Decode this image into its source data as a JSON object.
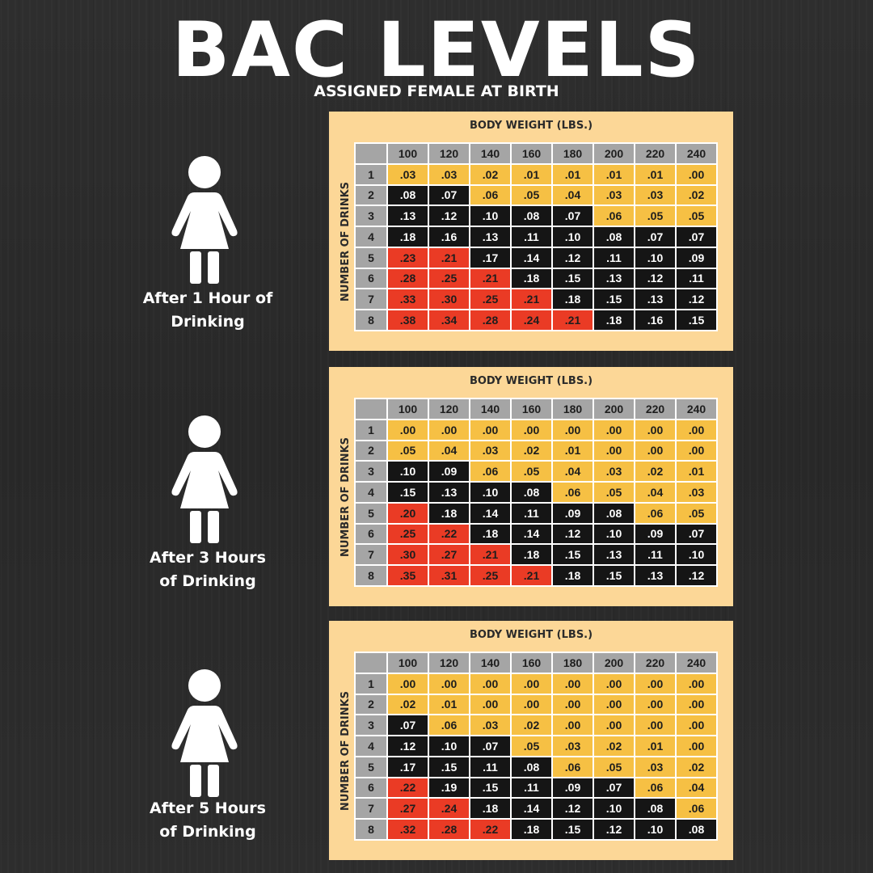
{
  "title": "BAC LEVELS",
  "subtitle": "ASSIGNED FEMALE AT BIRTH",
  "colors": {
    "background": "#2b2b2b",
    "panel": "#fcd797",
    "header_gray": "#a5a5a5",
    "yellow": "#f6c044",
    "black": "#151515",
    "red": "#ea3b25"
  },
  "icon": "female-person-icon",
  "tables": [
    {
      "caption_line1": "After 1 Hour of",
      "caption_line2": "Drinking",
      "column_header": "BODY WEIGHT (LBS.)",
      "row_header": "NUMBER OF DRINKS",
      "weights": [
        "100",
        "120",
        "140",
        "160",
        "180",
        "200",
        "220",
        "240"
      ],
      "rows": [
        {
          "drinks": "1",
          "values": [
            ".03",
            ".03",
            ".02",
            ".01",
            ".01",
            ".01",
            ".01",
            ".00"
          ],
          "levels": [
            "y",
            "y",
            "y",
            "y",
            "y",
            "y",
            "y",
            "y"
          ]
        },
        {
          "drinks": "2",
          "values": [
            ".08",
            ".07",
            ".06",
            ".05",
            ".04",
            ".03",
            ".03",
            ".02"
          ],
          "levels": [
            "k",
            "k",
            "y",
            "y",
            "y",
            "y",
            "y",
            "y"
          ]
        },
        {
          "drinks": "3",
          "values": [
            ".13",
            ".12",
            ".10",
            ".08",
            ".07",
            ".06",
            ".05",
            ".05"
          ],
          "levels": [
            "k",
            "k",
            "k",
            "k",
            "k",
            "y",
            "y",
            "y"
          ]
        },
        {
          "drinks": "4",
          "values": [
            ".18",
            ".16",
            ".13",
            ".11",
            ".10",
            ".08",
            ".07",
            ".07"
          ],
          "levels": [
            "k",
            "k",
            "k",
            "k",
            "k",
            "k",
            "k",
            "k"
          ]
        },
        {
          "drinks": "5",
          "values": [
            ".23",
            ".21",
            ".17",
            ".14",
            ".12",
            ".11",
            ".10",
            ".09"
          ],
          "levels": [
            "r",
            "r",
            "k",
            "k",
            "k",
            "k",
            "k",
            "k"
          ]
        },
        {
          "drinks": "6",
          "values": [
            ".28",
            ".25",
            ".21",
            ".18",
            ".15",
            ".13",
            ".12",
            ".11"
          ],
          "levels": [
            "r",
            "r",
            "r",
            "k",
            "k",
            "k",
            "k",
            "k"
          ]
        },
        {
          "drinks": "7",
          "values": [
            ".33",
            ".30",
            ".25",
            ".21",
            ".18",
            ".15",
            ".13",
            ".12"
          ],
          "levels": [
            "r",
            "r",
            "r",
            "r",
            "k",
            "k",
            "k",
            "k"
          ]
        },
        {
          "drinks": "8",
          "values": [
            ".38",
            ".34",
            ".28",
            ".24",
            ".21",
            ".18",
            ".16",
            ".15"
          ],
          "levels": [
            "r",
            "r",
            "r",
            "r",
            "r",
            "k",
            "k",
            "k"
          ]
        }
      ]
    },
    {
      "caption_line1": "After 3 Hours",
      "caption_line2": "of Drinking",
      "column_header": "BODY WEIGHT (LBS.)",
      "row_header": "NUMBER OF DRINKS",
      "weights": [
        "100",
        "120",
        "140",
        "160",
        "180",
        "200",
        "220",
        "240"
      ],
      "rows": [
        {
          "drinks": "1",
          "values": [
            ".00",
            ".00",
            ".00",
            ".00",
            ".00",
            ".00",
            ".00",
            ".00"
          ],
          "levels": [
            "y",
            "y",
            "y",
            "y",
            "y",
            "y",
            "y",
            "y"
          ]
        },
        {
          "drinks": "2",
          "values": [
            ".05",
            ".04",
            ".03",
            ".02",
            ".01",
            ".00",
            ".00",
            ".00"
          ],
          "levels": [
            "y",
            "y",
            "y",
            "y",
            "y",
            "y",
            "y",
            "y"
          ]
        },
        {
          "drinks": "3",
          "values": [
            ".10",
            ".09",
            ".06",
            ".05",
            ".04",
            ".03",
            ".02",
            ".01"
          ],
          "levels": [
            "k",
            "k",
            "y",
            "y",
            "y",
            "y",
            "y",
            "y"
          ]
        },
        {
          "drinks": "4",
          "values": [
            ".15",
            ".13",
            ".10",
            ".08",
            ".06",
            ".05",
            ".04",
            ".03"
          ],
          "levels": [
            "k",
            "k",
            "k",
            "k",
            "y",
            "y",
            "y",
            "y"
          ]
        },
        {
          "drinks": "5",
          "values": [
            ".20",
            ".18",
            ".14",
            ".11",
            ".09",
            ".08",
            ".06",
            ".05"
          ],
          "levels": [
            "r",
            "k",
            "k",
            "k",
            "k",
            "k",
            "y",
            "y"
          ]
        },
        {
          "drinks": "6",
          "values": [
            ".25",
            ".22",
            ".18",
            ".14",
            ".12",
            ".10",
            ".09",
            ".07"
          ],
          "levels": [
            "r",
            "r",
            "k",
            "k",
            "k",
            "k",
            "k",
            "k"
          ]
        },
        {
          "drinks": "7",
          "values": [
            ".30",
            ".27",
            ".21",
            ".18",
            ".15",
            ".13",
            ".11",
            ".10"
          ],
          "levels": [
            "r",
            "r",
            "r",
            "k",
            "k",
            "k",
            "k",
            "k"
          ]
        },
        {
          "drinks": "8",
          "values": [
            ".35",
            ".31",
            ".25",
            ".21",
            ".18",
            ".15",
            ".13",
            ".12"
          ],
          "levels": [
            "r",
            "r",
            "r",
            "r",
            "k",
            "k",
            "k",
            "k"
          ]
        }
      ]
    },
    {
      "caption_line1": "After 5 Hours",
      "caption_line2": "of Drinking",
      "column_header": "BODY WEIGHT (LBS.)",
      "row_header": "NUMBER OF DRINKS",
      "weights": [
        "100",
        "120",
        "140",
        "160",
        "180",
        "200",
        "220",
        "240"
      ],
      "rows": [
        {
          "drinks": "1",
          "values": [
            ".00",
            ".00",
            ".00",
            ".00",
            ".00",
            ".00",
            ".00",
            ".00"
          ],
          "levels": [
            "y",
            "y",
            "y",
            "y",
            "y",
            "y",
            "y",
            "y"
          ]
        },
        {
          "drinks": "2",
          "values": [
            ".02",
            ".01",
            ".00",
            ".00",
            ".00",
            ".00",
            ".00",
            ".00"
          ],
          "levels": [
            "y",
            "y",
            "y",
            "y",
            "y",
            "y",
            "y",
            "y"
          ]
        },
        {
          "drinks": "3",
          "values": [
            ".07",
            ".06",
            ".03",
            ".02",
            ".00",
            ".00",
            ".00",
            ".00"
          ],
          "levels": [
            "k",
            "y",
            "y",
            "y",
            "y",
            "y",
            "y",
            "y"
          ]
        },
        {
          "drinks": "4",
          "values": [
            ".12",
            ".10",
            ".07",
            ".05",
            ".03",
            ".02",
            ".01",
            ".00"
          ],
          "levels": [
            "k",
            "k",
            "k",
            "y",
            "y",
            "y",
            "y",
            "y"
          ]
        },
        {
          "drinks": "5",
          "values": [
            ".17",
            ".15",
            ".11",
            ".08",
            ".06",
            ".05",
            ".03",
            ".02"
          ],
          "levels": [
            "k",
            "k",
            "k",
            "k",
            "y",
            "y",
            "y",
            "y"
          ]
        },
        {
          "drinks": "6",
          "values": [
            ".22",
            ".19",
            ".15",
            ".11",
            ".09",
            ".07",
            ".06",
            ".04"
          ],
          "levels": [
            "r",
            "k",
            "k",
            "k",
            "k",
            "k",
            "y",
            "y"
          ]
        },
        {
          "drinks": "7",
          "values": [
            ".27",
            ".24",
            ".18",
            ".14",
            ".12",
            ".10",
            ".08",
            ".06"
          ],
          "levels": [
            "r",
            "r",
            "k",
            "k",
            "k",
            "k",
            "k",
            "y"
          ]
        },
        {
          "drinks": "8",
          "values": [
            ".32",
            ".28",
            ".22",
            ".18",
            ".15",
            ".12",
            ".10",
            ".08"
          ],
          "levels": [
            "r",
            "r",
            "r",
            "k",
            "k",
            "k",
            "k",
            "k"
          ]
        }
      ]
    }
  ]
}
